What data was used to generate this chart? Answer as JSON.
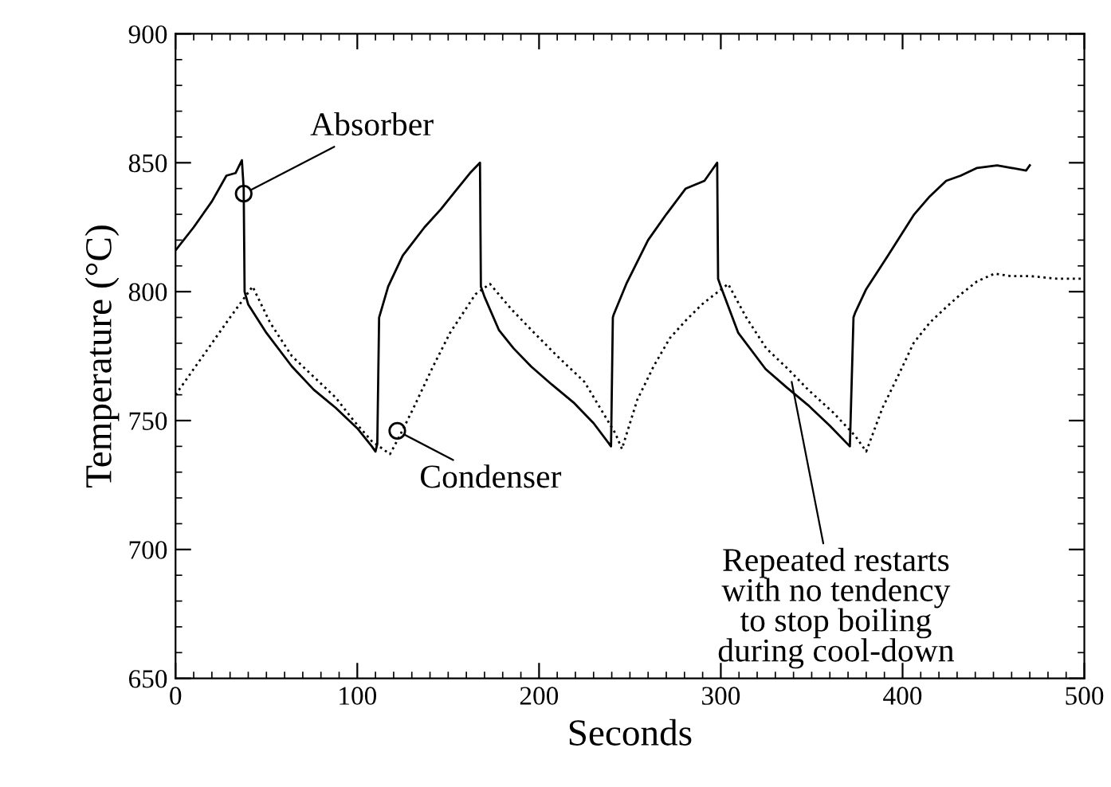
{
  "chart_data": {
    "type": "line",
    "xlabel": "Seconds",
    "ylabel": "Temperature (°C)",
    "xlim": [
      0,
      500
    ],
    "xticks": [
      0,
      100,
      200,
      300,
      400,
      500
    ],
    "ylim": [
      650,
      900
    ],
    "yticks": [
      650,
      700,
      750,
      800,
      850,
      900
    ],
    "grid": false,
    "legend": false,
    "marker": "none",
    "series": [
      {
        "color": "#000000",
        "line_style": "solid",
        "x": [
          0,
          10,
          20,
          28,
          33,
          36.5,
          37.5,
          38,
          40,
          50,
          64,
          76,
          88,
          100,
          108,
          110,
          111,
          112,
          117,
          125,
          137,
          146,
          154,
          162,
          167.5,
          168,
          170,
          178,
          186,
          195.6,
          207,
          219,
          230,
          239.6,
          240.6,
          241,
          248,
          260,
          270,
          280.7,
          291,
          298,
          298.5,
          300,
          309.6,
          324.6,
          336,
          348,
          360,
          371,
          373,
          374,
          380,
          392,
          406.4,
          415,
          424,
          432,
          441,
          452,
          460,
          468,
          470
        ],
        "values": [
          816,
          825,
          835,
          845,
          846,
          851,
          840,
          800,
          795,
          784,
          771,
          762,
          755,
          747,
          740,
          738,
          741,
          790,
          802,
          814,
          825,
          832,
          839,
          846,
          850,
          802,
          798,
          785,
          778,
          771,
          764,
          757,
          749,
          740,
          790,
          791,
          803,
          820,
          830,
          840,
          843,
          850,
          805,
          802,
          784,
          770,
          763,
          756,
          748,
          740,
          790,
          792,
          801,
          814,
          830,
          837,
          843,
          845,
          848,
          849,
          848,
          847,
          849
        ]
      },
      {
        "color": "#000000",
        "line_style": "dotted",
        "x": [
          0,
          10,
          20,
          30,
          42.4,
          52,
          64,
          76,
          88,
          98,
          108,
          118,
          124,
          131,
          141,
          151,
          165,
          173,
          185,
          196,
          210,
          225,
          242,
          245.6,
          254,
          263,
          272,
          281,
          289.5,
          304,
          314,
          325,
          337,
          348,
          362,
          374,
          380,
          389,
          398,
          406,
          415,
          424,
          432,
          441,
          450.6,
          460,
          471,
          485,
          500
        ],
        "values": [
          760,
          770,
          780,
          790,
          802,
          788,
          775,
          767,
          759,
          750,
          742,
          737,
          745,
          755,
          770,
          784,
          799,
          803,
          793,
          785,
          775,
          765,
          745,
          739,
          758,
          771,
          782,
          789,
          795,
          803,
          790,
          778,
          770,
          762,
          753,
          744,
          738,
          755,
          768,
          780,
          788,
          794,
          799,
          804,
          807,
          806,
          806,
          805,
          805
        ]
      }
    ],
    "annotations": [
      {
        "text": "Absorber",
        "x": 37.5,
        "y": 838
      },
      {
        "text": "Condenser",
        "x": 122,
        "y": 746
      },
      {
        "text": "Repeated restarts\nwith no tendency\nto stop boiling\nduring cool-down",
        "x": 339,
        "y": 765
      }
    ]
  }
}
